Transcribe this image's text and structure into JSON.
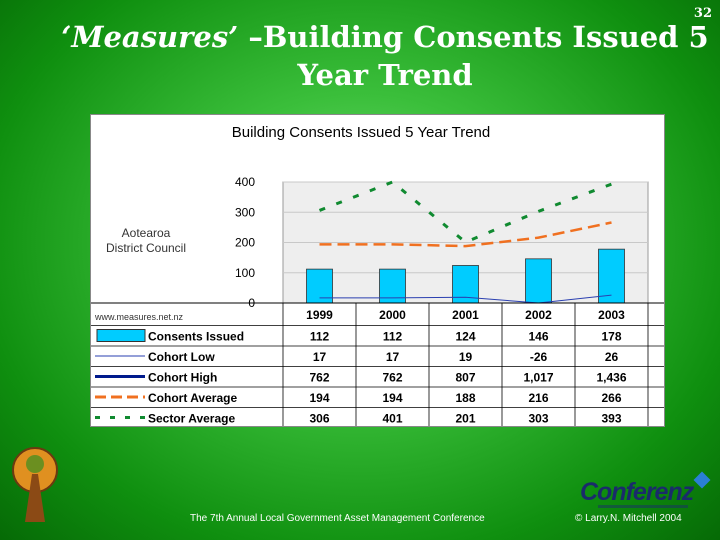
{
  "slide": {
    "number": "32",
    "title_quote": "‘Measures’",
    "title_rest": " –Building Consents Issued 5 Year Trend"
  },
  "footer": {
    "conference": "The 7th Annual Local Government Asset Management Conference",
    "copyright": "© Larry.N. Mitchell 2004",
    "logo": "Conferenz"
  },
  "chart_data": {
    "type": "bar",
    "title": "Building Consents Issued 5 Year Trend",
    "ylabel": "Aotearoa District Council",
    "source": "www.measures.net.nz",
    "ylim": [
      0,
      400
    ],
    "yticks": [
      "0",
      "100",
      "200",
      "300",
      "400"
    ],
    "categories": [
      "1999",
      "2000",
      "2001",
      "2002",
      "2003"
    ],
    "series": [
      {
        "name": "Consents Issued",
        "style": "bar",
        "color": "#00ccff",
        "values": [
          112,
          112,
          124,
          146,
          178
        ],
        "labels": [
          "112",
          "112",
          "124",
          "146",
          "178"
        ]
      },
      {
        "name": "Cohort Low",
        "style": "thin",
        "color": "#2a3fb0",
        "values": [
          17,
          17,
          19,
          -26,
          26
        ],
        "labels": [
          "17",
          "17",
          "19",
          "-26",
          "26"
        ]
      },
      {
        "name": "Cohort High",
        "style": "thick",
        "color": "#001a8c",
        "values": [
          762,
          762,
          807,
          1017,
          1436
        ],
        "labels": [
          "762",
          "762",
          "807",
          "1,017",
          "1,436"
        ]
      },
      {
        "name": "Cohort Average",
        "style": "dash",
        "color": "#f07020",
        "values": [
          194,
          194,
          188,
          216,
          266
        ],
        "labels": [
          "194",
          "194",
          "188",
          "216",
          "266"
        ]
      },
      {
        "name": "Sector Average",
        "style": "dot",
        "color": "#108a30",
        "values": [
          306,
          401,
          201,
          303,
          393
        ],
        "labels": [
          "306",
          "401",
          "201",
          "303",
          "393"
        ]
      }
    ]
  }
}
